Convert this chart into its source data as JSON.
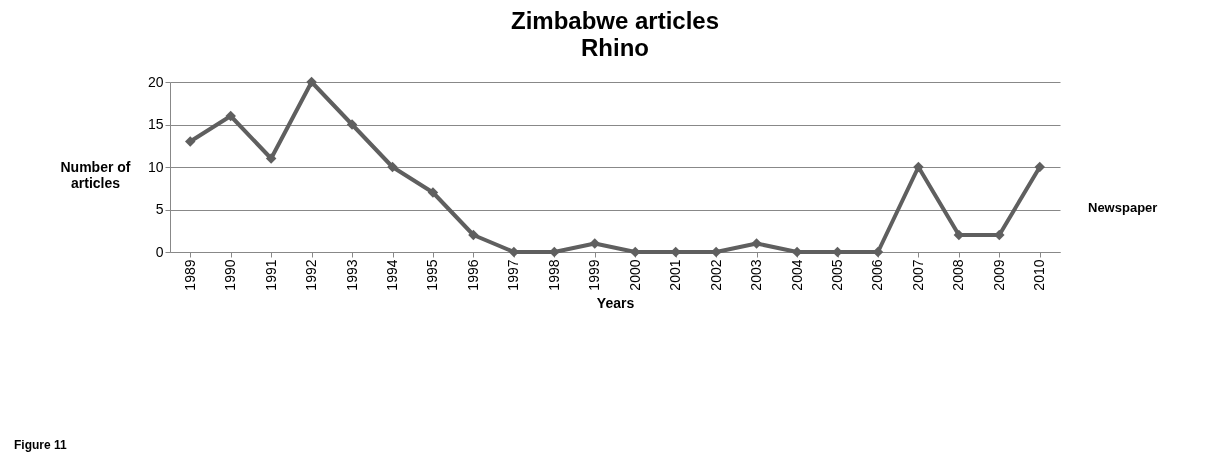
{
  "chart_data": {
    "type": "line",
    "title": "Zimbabwe articles",
    "subtitle": "Rhino",
    "xlabel": "Years",
    "ylabel": "Number of articles",
    "categories": [
      "1989",
      "1990",
      "1991",
      "1992",
      "1993",
      "1994",
      "1995",
      "1996",
      "1997",
      "1998",
      "1999",
      "2000",
      "2001",
      "2002",
      "2003",
      "2004",
      "2005",
      "2006",
      "2007",
      "2008",
      "2009",
      "2010"
    ],
    "series": [
      {
        "color": "#5f5f5f",
        "values": [
          13,
          16,
          11,
          20,
          15,
          10,
          7,
          2,
          0,
          0,
          1,
          0,
          0,
          0,
          1,
          0,
          0,
          0,
          10,
          2,
          2,
          10
        ]
      }
    ],
    "ylim": [
      0,
      20
    ],
    "yticks": [
      0,
      5,
      10,
      15,
      20
    ],
    "grid": "y",
    "marker": "diamond",
    "line_style": "solid",
    "annotations": [
      "Newspaper",
      "Figure  11"
    ]
  }
}
